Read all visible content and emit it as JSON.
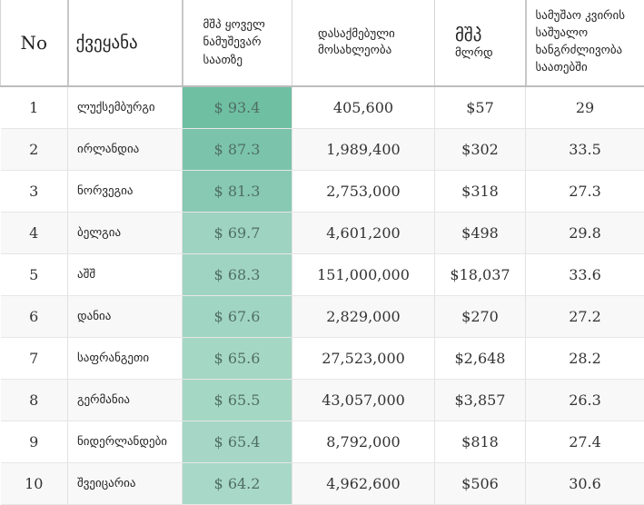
{
  "headers": {
    "no": "No",
    "country": "ქვეყანა",
    "gdp_per_hour": [
      "მშპ ყოველ",
      "ნამუშევარ",
      "საათზე"
    ],
    "employed": [
      "დასაქმებული",
      "მოსახლეობა"
    ],
    "gdp_big": "მშპ",
    "gdp_small": "მლრდ",
    "hours": [
      "სამუშაო კვირის",
      "საშუალო",
      "ხანგრძლივობა",
      "საათებში"
    ]
  },
  "rows": [
    {
      "no": "1",
      "country": "ლუქსემბურგი",
      "gdp_per_hour": "$ 93.4",
      "employed": "405,600",
      "gdp": "$57",
      "hours": "29"
    },
    {
      "no": "2",
      "country": "ირლანდია",
      "gdp_per_hour": "$ 87.3",
      "employed": "1,989,400",
      "gdp": "$302",
      "hours": "33.5"
    },
    {
      "no": "3",
      "country": "ნორვეგია",
      "gdp_per_hour": "$ 81.3",
      "employed": "2,753,000",
      "gdp": "$318",
      "hours": "27.3"
    },
    {
      "no": "4",
      "country": "ბელგია",
      "gdp_per_hour": "$ 69.7",
      "employed": "4,601,200",
      "gdp": "$498",
      "hours": "29.8"
    },
    {
      "no": "5",
      "country": "აშშ",
      "gdp_per_hour": "$ 68.3",
      "employed": "151,000,000",
      "gdp": "$18,037",
      "hours": "33.6"
    },
    {
      "no": "6",
      "country": "დანია",
      "gdp_per_hour": "$ 67.6",
      "employed": "2,829,000",
      "gdp": "$270",
      "hours": "27.2"
    },
    {
      "no": "7",
      "country": "საფრანგეთი",
      "gdp_per_hour": "$ 65.6",
      "employed": "27,523,000",
      "gdp": "$2,648",
      "hours": "28.2"
    },
    {
      "no": "8",
      "country": "გერმანია",
      "gdp_per_hour": "$ 65.5",
      "employed": "43,057,000",
      "gdp": "$3,857",
      "hours": "26.3"
    },
    {
      "no": "9",
      "country": "ნიდერლანდები",
      "gdp_per_hour": "$ 65.4",
      "employed": "8,792,000",
      "gdp": "$818",
      "hours": "27.4"
    },
    {
      "no": "10",
      "country": "შვეიცარია",
      "gdp_per_hour": "$ 64.2",
      "employed": "4,962,600",
      "gdp": "$506",
      "hours": "30.6"
    }
  ],
  "colors": {
    "heat_high": "#6fbfa3",
    "heat_low": "#a8d8c7",
    "heat_text": "#4f6e64"
  }
}
